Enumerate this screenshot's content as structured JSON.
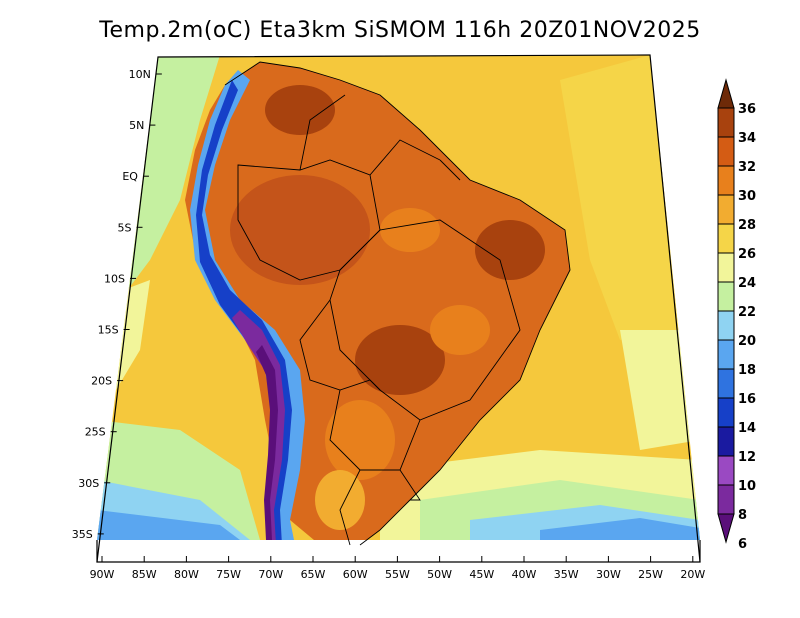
{
  "title": "Temp.2m(oC) Eta3km SiSMOM 116h 20Z01NOV2025",
  "map": {
    "variable": "2 m air temperature",
    "units": "oC",
    "lat_labels": [
      "10N",
      "5N",
      "EQ",
      "5S",
      "10S",
      "15S",
      "20S",
      "25S",
      "30S",
      "35S"
    ],
    "lon_labels": [
      "90W",
      "85W",
      "80W",
      "75W",
      "70W",
      "65W",
      "60W",
      "55W",
      "50W",
      "45W",
      "40W",
      "35W",
      "30W",
      "25W",
      "20W"
    ]
  },
  "colorbar": {
    "levels": [
      "6",
      "8",
      "10",
      "12",
      "14",
      "16",
      "18",
      "20",
      "22",
      "24",
      "26",
      "28",
      "30",
      "32",
      "34",
      "36"
    ],
    "colors": [
      "#5a0f7a",
      "#7b2a9e",
      "#9a49c2",
      "#1a1aa0",
      "#1640c8",
      "#2f73e0",
      "#5aa6f0",
      "#8fd3f2",
      "#c5f0a0",
      "#f2f59a",
      "#f5d548",
      "#f2ac30",
      "#e8801c",
      "#d45c14",
      "#a8420e",
      "#6e2a08"
    ]
  }
}
